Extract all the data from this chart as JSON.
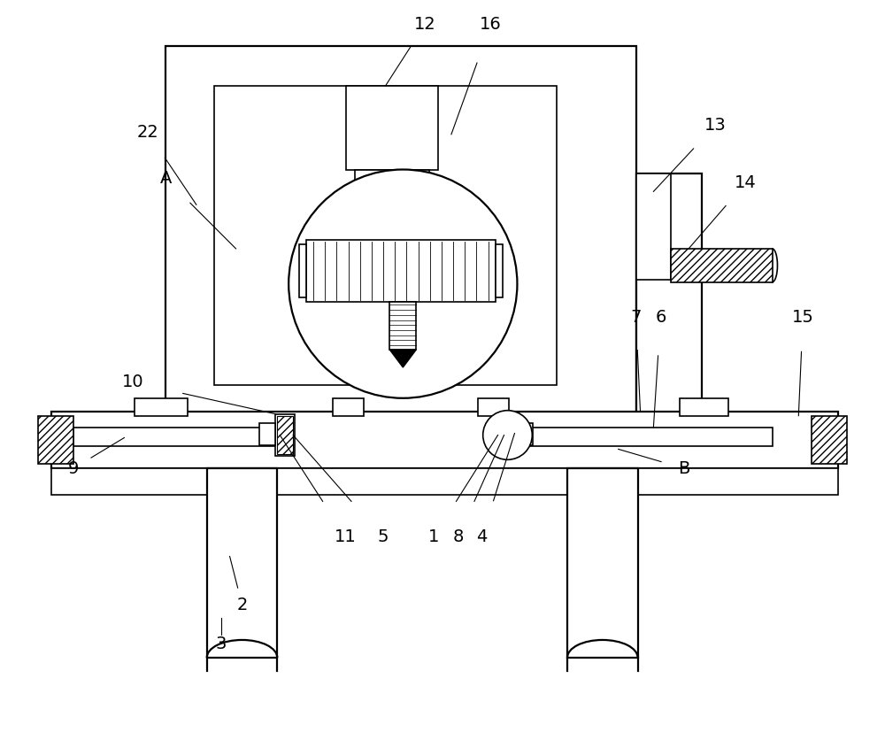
{
  "bg_color": "#ffffff",
  "line_color": "#000000",
  "fig_width": 10.0,
  "fig_height": 8.36,
  "dpi": 100
}
